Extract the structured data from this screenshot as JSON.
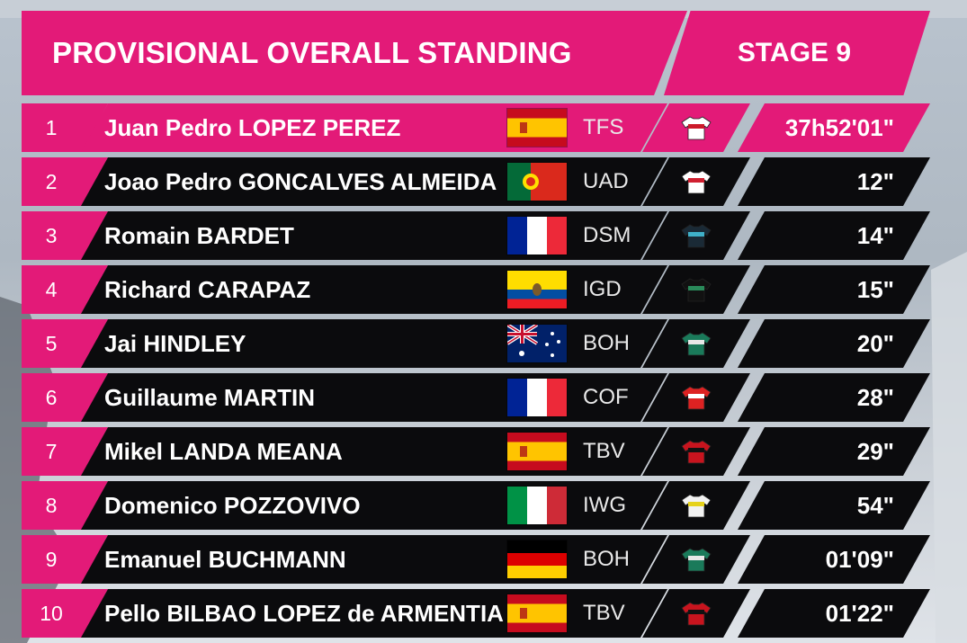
{
  "header": {
    "title": "PROVISIONAL OVERALL STANDING",
    "stage": "STAGE 9"
  },
  "colors": {
    "accent": "#e31a78",
    "row_bg": "#0b0b0d",
    "text": "#ffffff"
  },
  "rows": [
    {
      "rank": "1",
      "name": "Juan Pedro LOPEZ PEREZ",
      "flag": "spain-flag",
      "team": "TFS",
      "jersey": "pink-leader-jersey-icon",
      "time": "37h52'01\""
    },
    {
      "rank": "2",
      "name": "Joao Pedro GONCALVES ALMEIDA",
      "flag": "portugal-flag",
      "team": "UAD",
      "jersey": "team-jersey-icon",
      "time": "12\""
    },
    {
      "rank": "3",
      "name": "Romain BARDET",
      "flag": "france-flag",
      "team": "DSM",
      "jersey": "team-jersey-icon",
      "time": "14\""
    },
    {
      "rank": "4",
      "name": "Richard CARAPAZ",
      "flag": "ecuador-flag",
      "team": "IGD",
      "jersey": "team-jersey-icon",
      "time": "15\""
    },
    {
      "rank": "5",
      "name": "Jai HINDLEY",
      "flag": "australia-flag",
      "team": "BOH",
      "jersey": "team-jersey-icon",
      "time": "20\""
    },
    {
      "rank": "6",
      "name": "Guillaume MARTIN",
      "flag": "france-flag",
      "team": "COF",
      "jersey": "team-jersey-icon",
      "time": "28\""
    },
    {
      "rank": "7",
      "name": "Mikel LANDA MEANA",
      "flag": "spain-flag",
      "team": "TBV",
      "jersey": "team-jersey-icon",
      "time": "29\""
    },
    {
      "rank": "8",
      "name": "Domenico POZZOVIVO",
      "flag": "italy-flag",
      "team": "IWG",
      "jersey": "team-jersey-icon",
      "time": "54\""
    },
    {
      "rank": "9",
      "name": "Emanuel BUCHMANN",
      "flag": "germany-flag",
      "team": "BOH",
      "jersey": "team-jersey-icon",
      "time": "01'09\""
    },
    {
      "rank": "10",
      "name": "Pello BILBAO LOPEZ de ARMENTIA",
      "flag": "spain-flag",
      "team": "TBV",
      "jersey": "team-jersey-icon",
      "time": "01'22\""
    }
  ]
}
